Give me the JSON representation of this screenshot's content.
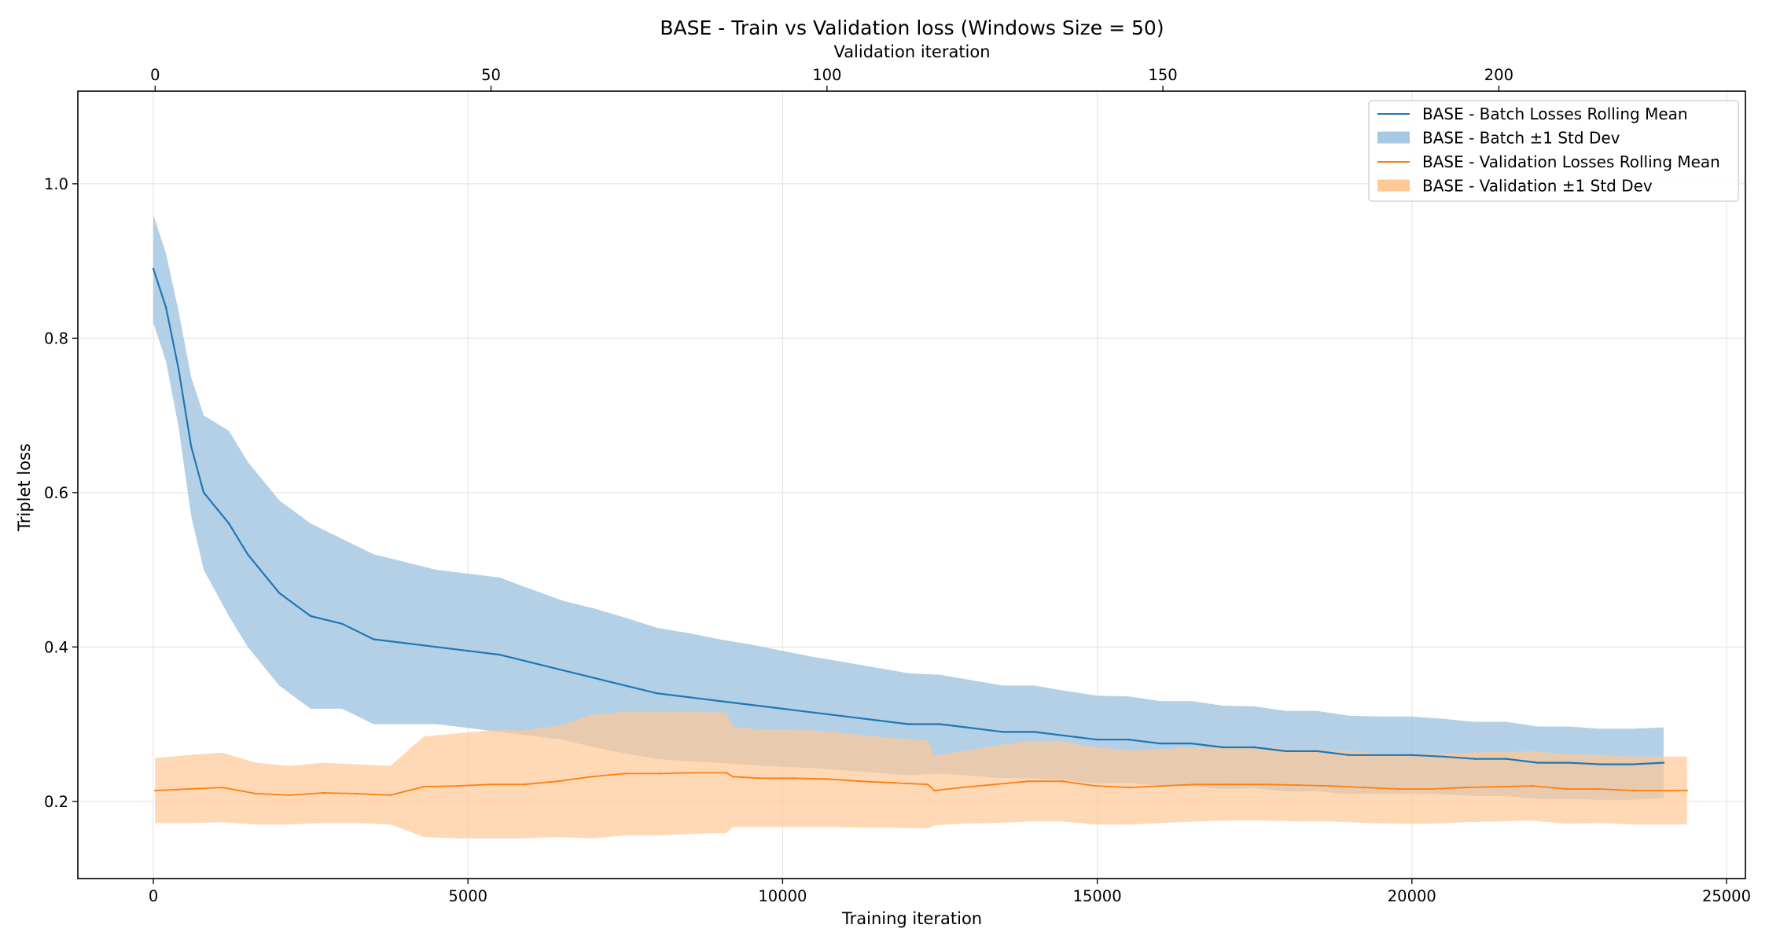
{
  "chart_data": {
    "type": "line",
    "title": "BASE - Train vs Validation loss (Windows Size = 50)",
    "xlabel": "Training iteration",
    "ylabel": "Triplet loss",
    "top_xlabel": "Validation iteration",
    "xlim": [
      -1200,
      25300
    ],
    "ylim": [
      0.1,
      1.12
    ],
    "top_xlim": [
      -11.5,
      236.7
    ],
    "x_ticks": [
      0,
      5000,
      10000,
      15000,
      20000,
      25000
    ],
    "y_ticks": [
      0.2,
      0.4,
      0.6,
      0.8,
      1.0
    ],
    "top_x_ticks": [
      0,
      50,
      100,
      150,
      200
    ],
    "x_tick_labels": [
      "0",
      "5000",
      "10000",
      "15000",
      "20000",
      "25000"
    ],
    "y_tick_labels": [
      "0.2",
      "0.4",
      "0.6",
      "0.8",
      "1.0"
    ],
    "top_x_tick_labels": [
      "0",
      "50",
      "100",
      "150",
      "200"
    ],
    "grid": true,
    "legend_position": "top-right",
    "legend": [
      {
        "label": "BASE - Batch Losses Rolling Mean",
        "kind": "line",
        "color": "#1f77b4"
      },
      {
        "label": "BASE - Batch ±1 Std Dev",
        "kind": "band",
        "color": "#a6c8e3"
      },
      {
        "label": "BASE - Validation Losses Rolling Mean",
        "kind": "line",
        "color": "#ff7f0e"
      },
      {
        "label": "BASE - Validation ±1 Std Dev",
        "kind": "band",
        "color": "#ffc896"
      }
    ],
    "series": [
      {
        "name": "BASE - Batch Losses Rolling Mean",
        "axis": "bottom",
        "color": "#1f77b4",
        "band_color": "#a6c8e3",
        "band_name": "BASE - Batch ±1 Std Dev",
        "x": [
          0,
          200,
          400,
          600,
          800,
          1000,
          1200,
          1500,
          2000,
          2500,
          3000,
          3500,
          4000,
          4500,
          5000,
          5500,
          6000,
          6500,
          7000,
          7500,
          8000,
          8500,
          9000,
          9500,
          10000,
          10500,
          11000,
          11500,
          12000,
          12500,
          13000,
          13500,
          14000,
          14500,
          15000,
          15500,
          16000,
          16500,
          17000,
          17500,
          18000,
          18500,
          19000,
          19500,
          20000,
          20500,
          21000,
          21500,
          22000,
          22500,
          23000,
          23500,
          24000
        ],
        "mean": [
          0.89,
          0.84,
          0.76,
          0.66,
          0.6,
          0.58,
          0.56,
          0.52,
          0.47,
          0.44,
          0.43,
          0.41,
          0.405,
          0.4,
          0.395,
          0.39,
          0.38,
          0.37,
          0.36,
          0.35,
          0.34,
          0.335,
          0.33,
          0.325,
          0.32,
          0.315,
          0.31,
          0.305,
          0.3,
          0.3,
          0.295,
          0.29,
          0.29,
          0.285,
          0.28,
          0.28,
          0.275,
          0.275,
          0.27,
          0.27,
          0.265,
          0.265,
          0.26,
          0.26,
          0.26,
          0.258,
          0.255,
          0.255,
          0.25,
          0.25,
          0.248,
          0.248,
          0.25
        ],
        "std": [
          0.07,
          0.07,
          0.075,
          0.09,
          0.1,
          0.11,
          0.12,
          0.12,
          0.12,
          0.12,
          0.11,
          0.11,
          0.105,
          0.1,
          0.1,
          0.1,
          0.095,
          0.09,
          0.09,
          0.088,
          0.085,
          0.083,
          0.08,
          0.078,
          0.075,
          0.072,
          0.07,
          0.068,
          0.066,
          0.064,
          0.062,
          0.06,
          0.06,
          0.058,
          0.057,
          0.056,
          0.055,
          0.055,
          0.054,
          0.053,
          0.052,
          0.052,
          0.051,
          0.05,
          0.05,
          0.049,
          0.048,
          0.048,
          0.047,
          0.047,
          0.046,
          0.046,
          0.046
        ]
      },
      {
        "name": "BASE - Validation Losses Rolling Mean",
        "axis": "top",
        "color": "#ff7f0e",
        "band_color": "#ffc896",
        "band_name": "BASE - Validation ±1 Std Dev",
        "x": [
          0,
          5,
          10,
          15,
          20,
          25,
          30,
          35,
          40,
          45,
          50,
          55,
          60,
          65,
          70,
          75,
          80,
          85,
          86,
          90,
          95,
          100,
          105,
          110,
          115,
          116,
          120,
          125,
          130,
          135,
          140,
          145,
          150,
          155,
          160,
          165,
          170,
          175,
          180,
          185,
          190,
          195,
          200,
          205,
          210,
          215,
          220,
          225,
          228
        ],
        "mean": [
          0.214,
          0.216,
          0.218,
          0.21,
          0.208,
          0.211,
          0.21,
          0.208,
          0.219,
          0.22,
          0.222,
          0.222,
          0.226,
          0.232,
          0.236,
          0.236,
          0.237,
          0.237,
          0.232,
          0.23,
          0.23,
          0.229,
          0.226,
          0.224,
          0.222,
          0.214,
          0.218,
          0.222,
          0.226,
          0.226,
          0.22,
          0.218,
          0.22,
          0.222,
          0.222,
          0.222,
          0.221,
          0.22,
          0.218,
          0.216,
          0.216,
          0.218,
          0.219,
          0.22,
          0.216,
          0.216,
          0.214,
          0.214,
          0.214
        ],
        "std": [
          0.042,
          0.044,
          0.045,
          0.04,
          0.038,
          0.039,
          0.038,
          0.038,
          0.065,
          0.068,
          0.07,
          0.07,
          0.072,
          0.08,
          0.08,
          0.08,
          0.079,
          0.078,
          0.065,
          0.063,
          0.063,
          0.062,
          0.06,
          0.058,
          0.057,
          0.045,
          0.047,
          0.05,
          0.052,
          0.052,
          0.05,
          0.048,
          0.048,
          0.048,
          0.047,
          0.047,
          0.047,
          0.046,
          0.046,
          0.045,
          0.045,
          0.045,
          0.045,
          0.045,
          0.045,
          0.044,
          0.044,
          0.044,
          0.044
        ]
      }
    ]
  }
}
